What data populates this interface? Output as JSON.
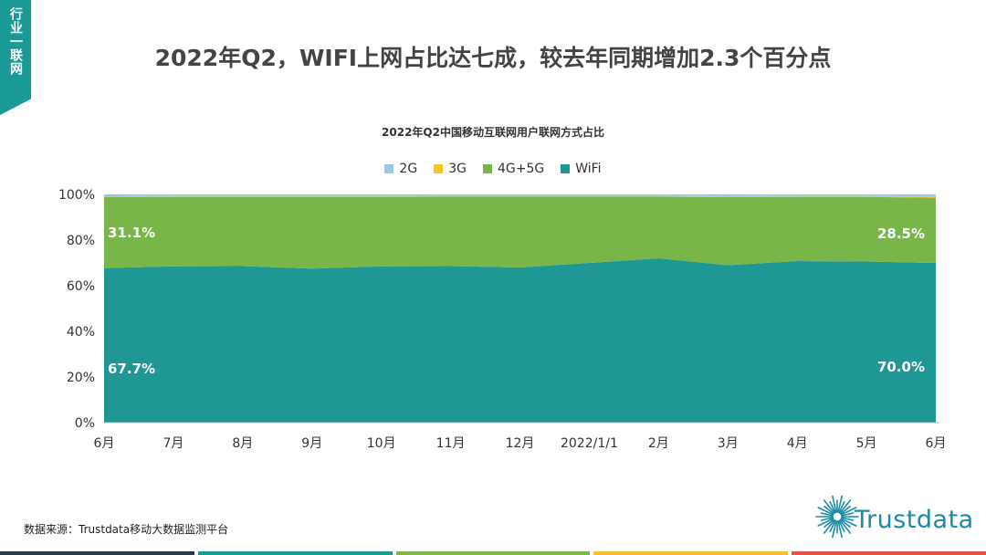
{
  "corner_tag": "行业一联网",
  "slide_title": "2022年Q2，WIFI上网占比达七成，较去年同期增加2.3个百分点",
  "source_text": "数据来源：Trustdata移动大数据监测平台",
  "brand": {
    "name": "Trustdata",
    "color": "#1a8aa8"
  },
  "colors": {
    "corner": "#1a9a96",
    "footer": [
      "#2b3a4a",
      "#1a9a96",
      "#7cb84a",
      "#f2c32a",
      "#e8514a"
    ]
  },
  "chart_data": {
    "type": "area",
    "title": "2022年Q2中国移动互联网用户联网方式占比",
    "legend_position": "top",
    "categories": [
      "6月",
      "7月",
      "8月",
      "9月",
      "10月",
      "11月",
      "12月",
      "2022/1/1",
      "2月",
      "3月",
      "4月",
      "5月",
      "6月"
    ],
    "y_ticks": [
      "0%",
      "20%",
      "40%",
      "60%",
      "80%",
      "100%"
    ],
    "ylim": [
      0,
      100
    ],
    "series": [
      {
        "name": "WiFi",
        "color": "#1e9795",
        "values": [
          67.7,
          68.5,
          68.6,
          67.5,
          68.5,
          68.6,
          68.0,
          70.0,
          72.0,
          69.0,
          70.8,
          70.6,
          70.0
        ]
      },
      {
        "name": "4G+5G",
        "color": "#79b64a",
        "values": [
          31.1,
          30.4,
          30.3,
          31.4,
          30.4,
          30.4,
          31.0,
          29.0,
          27.0,
          29.8,
          28.1,
          28.3,
          28.5
        ]
      },
      {
        "name": "3G",
        "color": "#f5c518",
        "values": [
          0.4,
          0.4,
          0.4,
          0.4,
          0.4,
          0.3,
          0.3,
          0.3,
          0.3,
          0.4,
          0.4,
          0.4,
          0.5
        ]
      },
      {
        "name": "2G",
        "color": "#9cc8e4",
        "values": [
          0.8,
          0.7,
          0.7,
          0.7,
          0.7,
          0.7,
          0.7,
          0.7,
          0.7,
          0.8,
          0.7,
          0.7,
          1.0
        ]
      }
    ],
    "legend_order": [
      "2G",
      "3G",
      "4G+5G",
      "WiFi"
    ],
    "data_labels": [
      {
        "series": "4G+5G",
        "index": 0,
        "text": "31.1%"
      },
      {
        "series": "WiFi",
        "index": 0,
        "text": "67.7%"
      },
      {
        "series": "4G+5G",
        "index": 12,
        "text": "28.5%"
      },
      {
        "series": "WiFi",
        "index": 12,
        "text": "70.0%"
      }
    ]
  }
}
